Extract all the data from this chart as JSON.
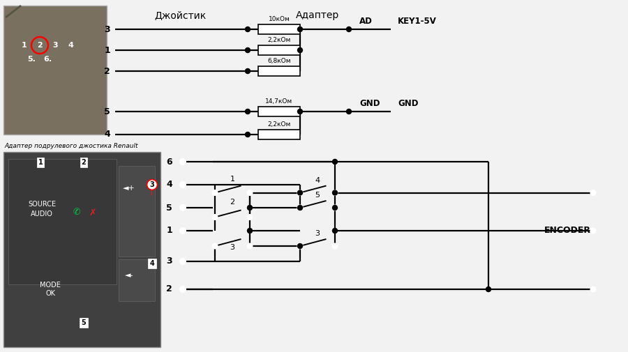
{
  "bg_color": "#f2f2f2",
  "title_joystick": "Джойстик",
  "title_adapter": "Адаптер",
  "label_adapter_renault": "Адаптер подрулевого джостика Renault",
  "key1_5v": "KEY1-5V",
  "ad_label": "AD",
  "gnd_label1": "GND",
  "gnd_label2": "GND",
  "encoder_label": "ENCODER",
  "resistors_top": [
    "10кОм",
    "2,2кОм",
    "6,8кОм"
  ],
  "resistors_bot": [
    "14,7кОм",
    "2,2кОм"
  ],
  "wire_color": "#000000",
  "dot_color": "#000000",
  "photo1_color": "#7a7060",
  "photo2_color": "#404040",
  "photo2_dark": "#303030"
}
